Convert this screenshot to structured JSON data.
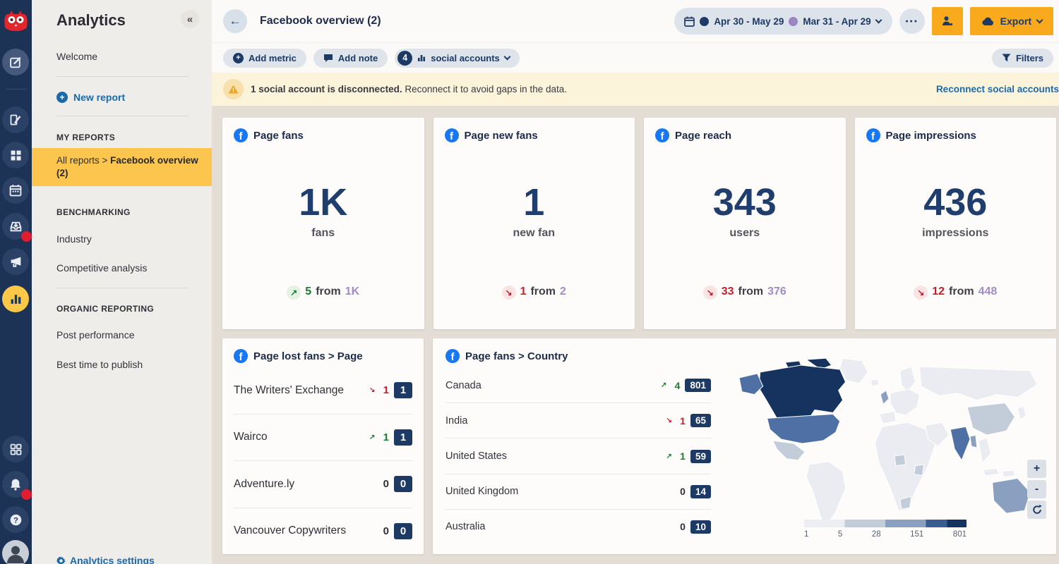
{
  "colors": {
    "accent_orange": "#f9a91c",
    "facebook_blue": "#1877f2",
    "badge_navy": "#1c3a63",
    "positive_green": "#1e7b34",
    "negative_red": "#c41f2e",
    "compare_purple": "#a18cc6",
    "primary_range_dot": "#1c3a63",
    "compare_range_dot": "#9b85c2",
    "active_yellow": "#fcc64e"
  },
  "labels": {
    "from": "from",
    "up_glyph": "↗",
    "down_glyph": "↘"
  },
  "rail": {
    "logo": "owly-logo-icon",
    "items": [
      {
        "icon": "compose-icon",
        "style": "lighter"
      },
      {
        "icon": "content-icon"
      },
      {
        "icon": "streams-icon"
      },
      {
        "icon": "planner-icon"
      },
      {
        "icon": "inbox-icon",
        "badge": true
      },
      {
        "icon": "promote-icon"
      },
      {
        "icon": "analytics-icon",
        "style": "active"
      },
      {
        "icon": "apps-icon"
      },
      {
        "icon": "notifications-icon",
        "badge": true
      },
      {
        "icon": "help-icon"
      },
      {
        "icon": "profile-avatar",
        "style": "avatar"
      }
    ]
  },
  "sidebar": {
    "title": "Analytics",
    "collapse_glyph": "«",
    "welcome": "Welcome",
    "new_report": "New report",
    "my_reports_label": "MY REPORTS",
    "active_item": {
      "prefix": "All reports > ",
      "bold": "Facebook overview (2)"
    },
    "benchmarking_label": "BENCHMARKING",
    "benchmarking_items": [
      "Industry",
      "Competitive analysis"
    ],
    "organic_label": "ORGANIC REPORTING",
    "organic_items": [
      "Post performance",
      "Best time to publish"
    ],
    "settings": "Analytics settings"
  },
  "header": {
    "title": "Facebook overview (2)",
    "back_glyph": "←",
    "date_range_primary": "Apr 30 - May 29",
    "date_range_compare": "Mar 31 - Apr 29",
    "more_glyph": "●●●",
    "export_label": "Export"
  },
  "toolbar": {
    "add_metric": "Add metric",
    "add_note": "Add note",
    "accounts_count": "4",
    "accounts_label": "social accounts",
    "filters": "Filters"
  },
  "banner": {
    "bold": "1 social account is disconnected.",
    "text": " Reconnect it to avoid gaps in the data.",
    "link": "Reconnect social accounts"
  },
  "metric_cards": [
    {
      "title": "Page fans",
      "value": "1K",
      "unit": "fans",
      "dir": "up",
      "delta": "5",
      "prev": "1K"
    },
    {
      "title": "Page new fans",
      "value": "1",
      "unit": "new fan",
      "dir": "down",
      "delta": "1",
      "prev": "2"
    },
    {
      "title": "Page reach",
      "value": "343",
      "unit": "users",
      "dir": "down",
      "delta": "33",
      "prev": "376"
    },
    {
      "title": "Page impressions",
      "value": "436",
      "unit": "impressions",
      "dir": "down",
      "delta": "12",
      "prev": "448"
    }
  ],
  "lost_fans_card": {
    "title": "Page lost fans > Page",
    "rows": [
      {
        "name": "The Writers' Exchange",
        "dir": "down",
        "delta": "1",
        "value": "1"
      },
      {
        "name": "Wairco",
        "dir": "up",
        "delta": "1",
        "value": "1"
      },
      {
        "name": "Adventure.ly",
        "dir": "none",
        "delta": "0",
        "value": "0"
      },
      {
        "name": "Vancouver Copywriters",
        "dir": "none",
        "delta": "0",
        "value": "0"
      }
    ]
  },
  "country_card": {
    "title": "Page fans > Country",
    "rows": [
      {
        "name": "Canada",
        "dir": "up",
        "delta": "4",
        "value": "801"
      },
      {
        "name": "India",
        "dir": "down",
        "delta": "1",
        "value": "65"
      },
      {
        "name": "United States",
        "dir": "up",
        "delta": "1",
        "value": "59"
      },
      {
        "name": "United Kingdom",
        "dir": "none",
        "delta": "0",
        "value": "14"
      },
      {
        "name": "Australia",
        "dir": "none",
        "delta": "0",
        "value": "10"
      }
    ],
    "map_controls": {
      "zoom_in": "+",
      "zoom_out": "-",
      "reset": "refresh-icon"
    }
  },
  "chart_data": {
    "type": "choropleth",
    "title": "Page fans > Country",
    "regions": [
      {
        "name": "Canada",
        "value": 801
      },
      {
        "name": "India",
        "value": 65
      },
      {
        "name": "United States",
        "value": 59
      },
      {
        "name": "United Kingdom",
        "value": 14
      },
      {
        "name": "Australia",
        "value": 10
      }
    ],
    "legend_ticks": [
      "1",
      "5",
      "28",
      "151",
      "801"
    ],
    "legend_position": "bottom-center",
    "color_scale": [
      "#eceef2",
      "#c3cdda",
      "#8ba0c0",
      "#4f70a5",
      "#16335f"
    ]
  }
}
